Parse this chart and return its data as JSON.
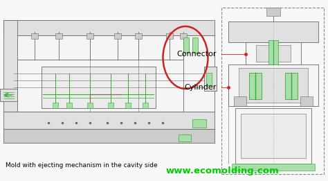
{
  "background_color": "#f8f8f8",
  "title_text": "Mold with ejecting mechanism in the cavity side",
  "title_fontsize": 6.5,
  "watermark_text": "www.ecomolding.com",
  "watermark_color": "#00cc00",
  "watermark_fontsize": 9.5,
  "connector_label": "Connector",
  "connector_fontsize": 8,
  "cylinder_label": "Cylinder",
  "cylinder_fontsize": 8,
  "line_color": "#666666",
  "light_gray": "#e0e0e0",
  "mid_gray": "#cccccc",
  "dark_gray": "#aaaaaa",
  "white_fill": "#f5f5f5",
  "green_color": "#33aa33",
  "green_light": "#aaddaa",
  "red_color": "#cc2222",
  "dashed_box_color": "#888888"
}
